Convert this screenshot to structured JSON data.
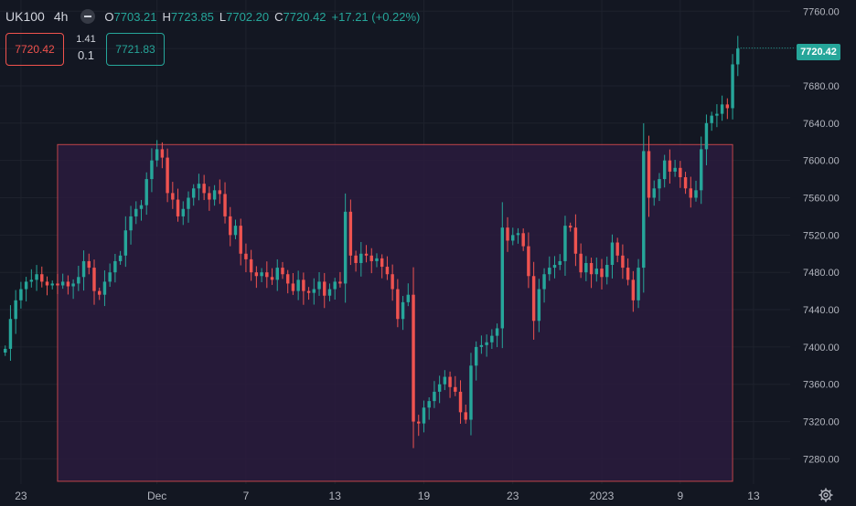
{
  "legend": {
    "symbol": "UK100",
    "interval": "4h",
    "open_label": "O",
    "open": "7703.21",
    "high_label": "H",
    "high": "7723.85",
    "low_label": "L",
    "low": "7702.20",
    "close_label": "C",
    "close": "7720.42",
    "change": "+17.21 (+0.22%)"
  },
  "trade_panel": {
    "sell_price": "7720.42",
    "spread": "1.41",
    "lot_size": "0.1",
    "buy_price": "7721.83"
  },
  "last_price_tag": "7720.42",
  "icons": {
    "settings": "gear-icon",
    "legend_toggle": "minus-circle-icon"
  },
  "colors": {
    "up": "#26a69a",
    "down": "#ef5350",
    "background": "#131722",
    "rectangle_fill": "#2a1b3d",
    "rectangle_border": "#c2454a"
  },
  "chart_data": {
    "type": "candlestick",
    "symbol": "UK100",
    "interval": "4h",
    "y_ticks": [
      7280,
      7320,
      7360,
      7400,
      7440,
      7480,
      7520,
      7560,
      7600,
      7640,
      7680,
      7720,
      7760
    ],
    "y_tick_labels": [
      "7280.00",
      "7320.00",
      "7360.00",
      "7400.00",
      "7440.00",
      "7480.00",
      "7520.00",
      "7560.00",
      "7600.00",
      "7640.00",
      "7680.00",
      "7720.00",
      "7760.00"
    ],
    "ylim": [
      7253,
      7772
    ],
    "x_tick_labels": [
      {
        "label": "23",
        "index": 3
      },
      {
        "label": "Dec",
        "index": 29
      },
      {
        "label": "7",
        "index": 46
      },
      {
        "label": "13",
        "index": 63
      },
      {
        "label": "19",
        "index": 80
      },
      {
        "label": "23",
        "index": 97
      },
      {
        "label": "2023",
        "index": 114
      },
      {
        "label": "9",
        "index": 129
      },
      {
        "label": "13",
        "index": 143
      }
    ],
    "x_index_range": [
      -1,
      150
    ],
    "last_price": 7720.42,
    "rectangle": {
      "from_index": 10,
      "to_index": 139,
      "top": 7617,
      "bottom": 7256
    },
    "closes": [
      7398,
      7430,
      7450,
      7462,
      7470,
      7472,
      7478,
      7470,
      7466,
      7468,
      7466,
      7470,
      7465,
      7468,
      7475,
      7492,
      7485,
      7460,
      7456,
      7470,
      7480,
      7492,
      7498,
      7525,
      7540,
      7548,
      7552,
      7580,
      7600,
      7612,
      7603,
      7565,
      7558,
      7540,
      7548,
      7560,
      7570,
      7575,
      7565,
      7558,
      7568,
      7564,
      7540,
      7520,
      7530,
      7500,
      7494,
      7480,
      7476,
      7480,
      7475,
      7472,
      7485,
      7478,
      7468,
      7460,
      7472,
      7460,
      7458,
      7462,
      7470,
      7455,
      7462,
      7470,
      7468,
      7545,
      7498,
      7490,
      7500,
      7498,
      7492,
      7495,
      7486,
      7478,
      7462,
      7430,
      7448,
      7456,
      7320,
      7318,
      7335,
      7342,
      7352,
      7360,
      7368,
      7357,
      7352,
      7330,
      7322,
      7380,
      7400,
      7402,
      7405,
      7412,
      7420,
      7528,
      7514,
      7520,
      7522,
      7508,
      7476,
      7428,
      7462,
      7478,
      7485,
      7488,
      7492,
      7530,
      7528,
      7500,
      7480,
      7490,
      7478,
      7484,
      7475,
      7488,
      7512,
      7498,
      7485,
      7472,
      7450,
      7485,
      7610,
      7560,
      7570,
      7580,
      7600,
      7588,
      7592,
      7582,
      7570,
      7560,
      7568,
      7612,
      7640,
      7648,
      7650,
      7660,
      7656,
      7703,
      7720
    ]
  }
}
